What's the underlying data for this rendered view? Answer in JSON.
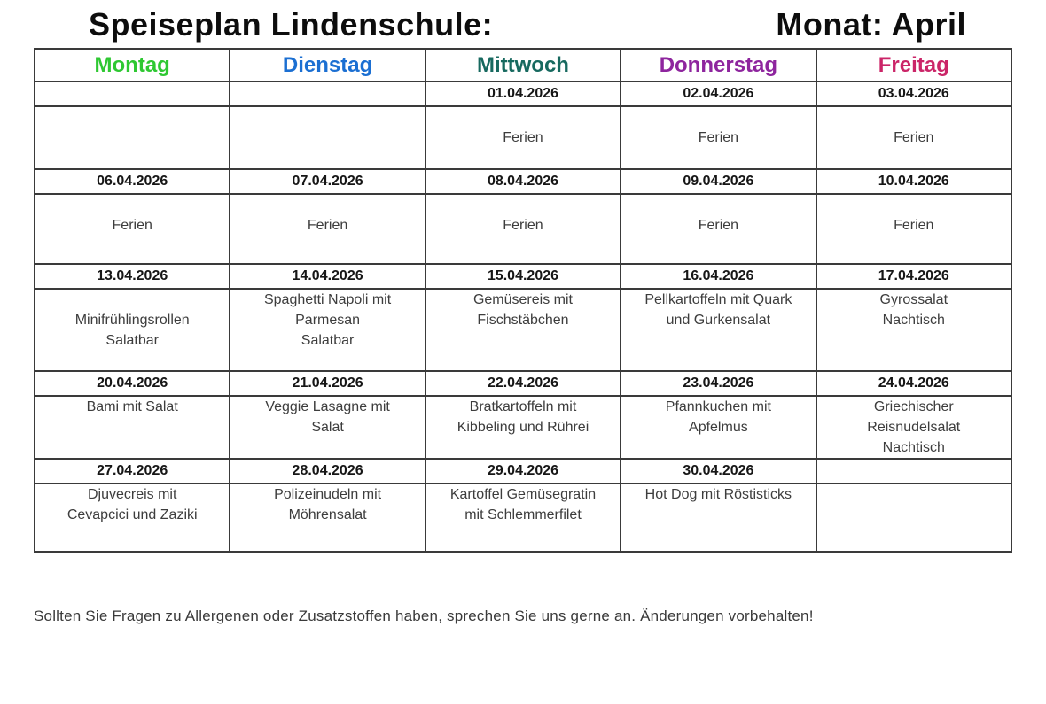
{
  "page": {
    "title_left": "Speiseplan Lindenschule:",
    "title_right": "Monat: April",
    "footer": "Sollten Sie Fragen zu Allergenen oder Zusatzstoffen haben, sprechen Sie uns gerne an. Änderungen vorbehalten!"
  },
  "table": {
    "columns": [
      {
        "label": "Montag",
        "color": "#2ec832"
      },
      {
        "label": "Dienstag",
        "color": "#1b6fd2"
      },
      {
        "label": "Mittwoch",
        "color": "#17695f"
      },
      {
        "label": "Donnerstag",
        "color": "#8e259e"
      },
      {
        "label": "Freitag",
        "color": "#cb2568"
      }
    ],
    "weeks": [
      {
        "dates": [
          "",
          "",
          "01.04.2026",
          "02.04.2026",
          "03.04.2026"
        ],
        "meals": [
          "",
          "",
          "\nFerien",
          "\nFerien",
          "\nFerien"
        ]
      },
      {
        "dates": [
          "06.04.2026",
          "07.04.2026",
          "08.04.2026",
          "09.04.2026",
          "10.04.2026"
        ],
        "meals": [
          "\nFerien",
          "\nFerien",
          "\nFerien",
          "\nFerien",
          "\nFerien"
        ]
      },
      {
        "dates": [
          "13.04.2026",
          "14.04.2026",
          "15.04.2026",
          "16.04.2026",
          "17.04.2026"
        ],
        "meals": [
          "\nMinifrühlingsrollen\nSalatbar",
          "Spaghetti Napoli mit\nParmesan\nSalatbar",
          "Gemüsereis mit\nFischstäbchen",
          "Pellkartoffeln mit Quark\nund Gurkensalat",
          "Gyrossalat\nNachtisch"
        ]
      },
      {
        "dates": [
          "20.04.2026",
          "21.04.2026",
          "22.04.2026",
          "23.04.2026",
          "24.04.2026"
        ],
        "meals": [
          "Bami mit Salat",
          "Veggie Lasagne mit\nSalat",
          "Bratkartoffeln mit\nKibbeling und Rührei",
          "Pfannkuchen mit\nApfelmus",
          "Griechischer\nReisnudelsalat\nNachtisch"
        ]
      },
      {
        "dates": [
          "27.04.2026",
          "28.04.2026",
          "29.04.2026",
          "30.04.2026",
          ""
        ],
        "meals": [
          "Djuvecreis mit\nCevapcici und Zaziki",
          "Polizeinudeln mit\nMöhrensalat",
          "Kartoffel Gemüsegratin\nmit Schlemmerfilet",
          "Hot Dog mit Röstisticks",
          ""
        ]
      }
    ]
  }
}
